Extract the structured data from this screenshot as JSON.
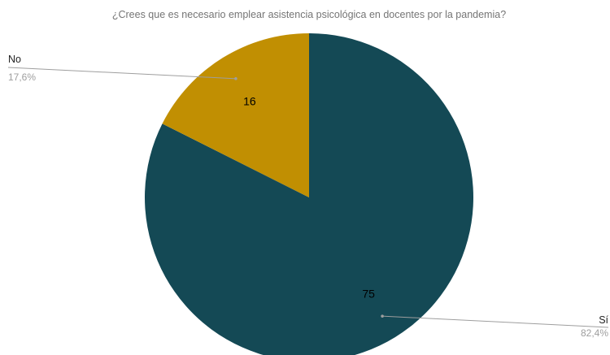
{
  "chart_data": {
    "type": "pie",
    "title": "¿Crees que es necesario emplear asistencia psicológica en docentes por la pandemia?",
    "categories": [
      "Sí",
      "No"
    ],
    "values": [
      75,
      16
    ],
    "value_labels": [
      "75",
      "16"
    ],
    "percent_labels": [
      "82,4%",
      "17,6%"
    ],
    "colors": [
      "#144955",
      "#c18f02"
    ],
    "legend": "none",
    "label_lines_color": "#9e9e9e"
  }
}
